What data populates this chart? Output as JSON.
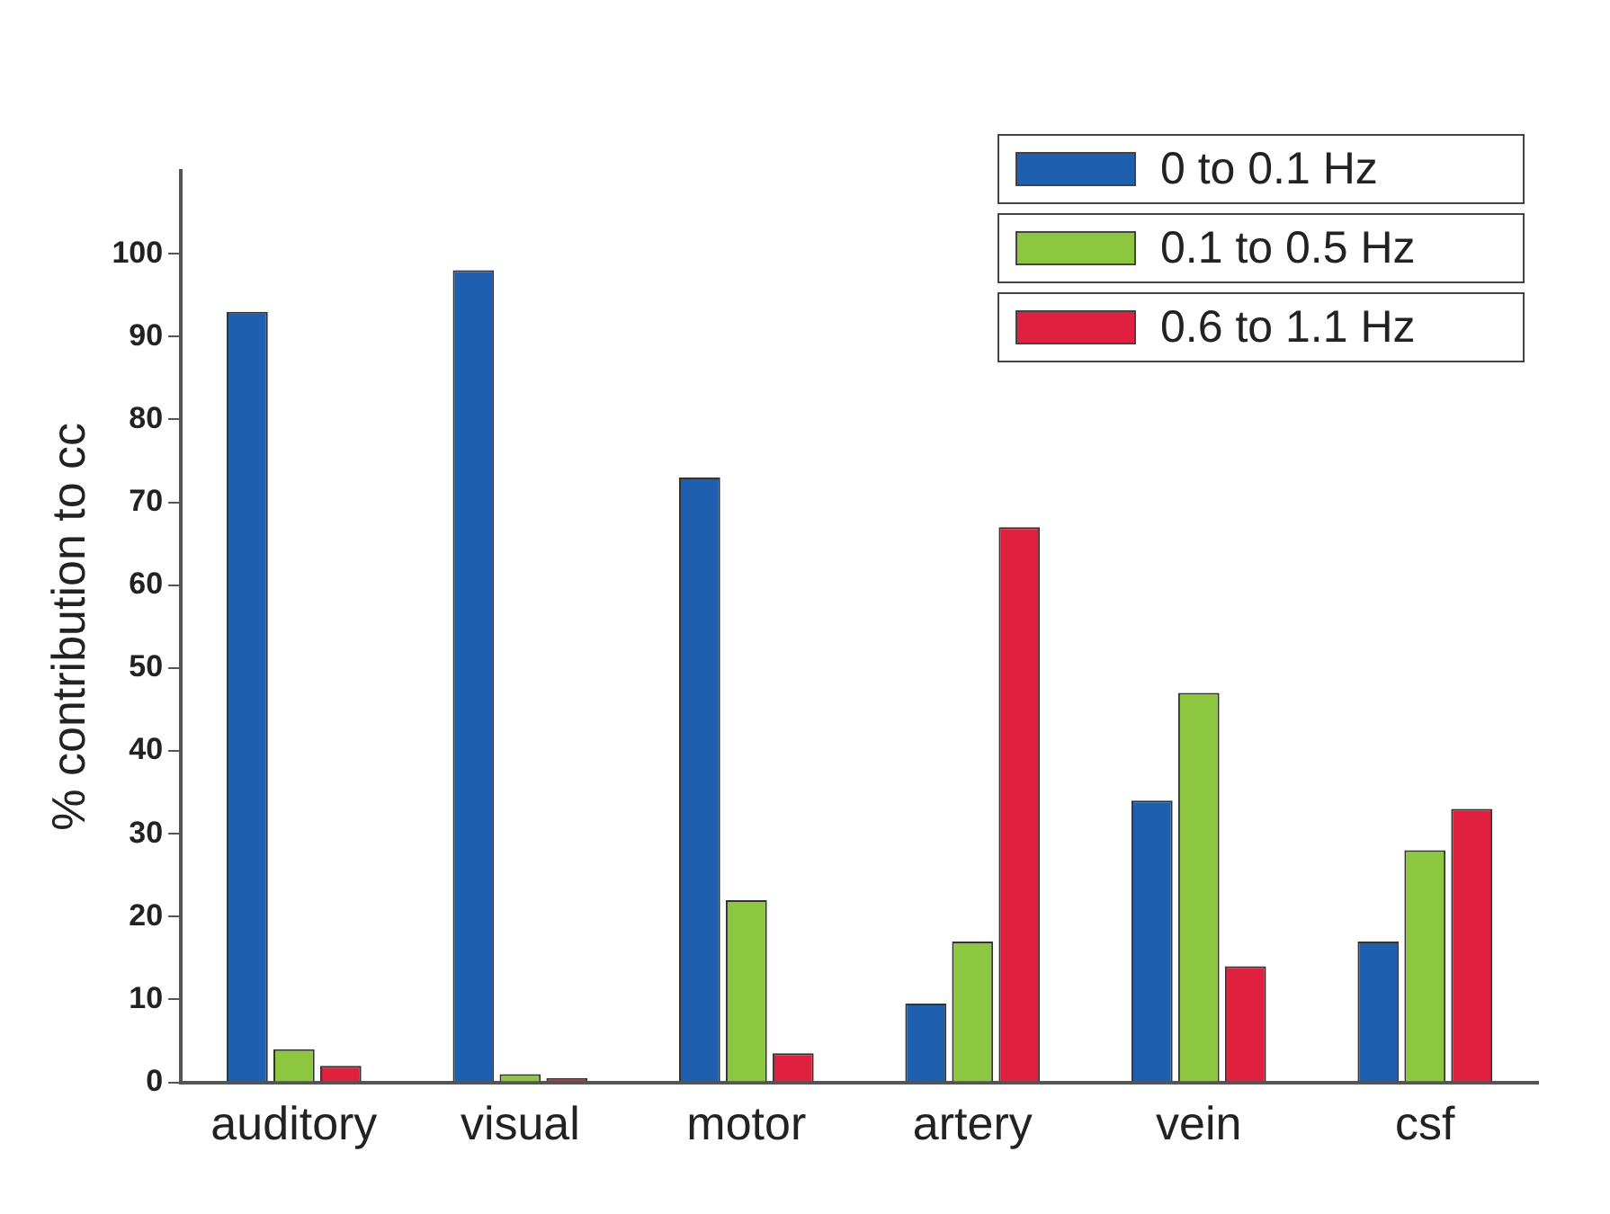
{
  "chart_data": {
    "type": "bar",
    "ylabel": "% contribution to cc",
    "categories": [
      "auditory",
      "visual",
      "motor",
      "artery",
      "vein",
      "csf"
    ],
    "series": [
      {
        "name": "0 to 0.1 Hz",
        "color": "#1f5fb0",
        "values": [
          93,
          98,
          73,
          9.5,
          34,
          17
        ]
      },
      {
        "name": "0.1 to 0.5 Hz",
        "color": "#8dc63f",
        "values": [
          4,
          1,
          22,
          17,
          47,
          28
        ]
      },
      {
        "name": "0.6 to 1.1 Hz",
        "color": "#e0203f",
        "values": [
          2,
          0.5,
          3.5,
          67,
          14,
          33
        ]
      }
    ],
    "ylim": [
      0,
      110
    ],
    "yticks": [
      0,
      10,
      20,
      30,
      40,
      50,
      60,
      70,
      80,
      90,
      100
    ],
    "grid": false,
    "legend": "top right"
  }
}
